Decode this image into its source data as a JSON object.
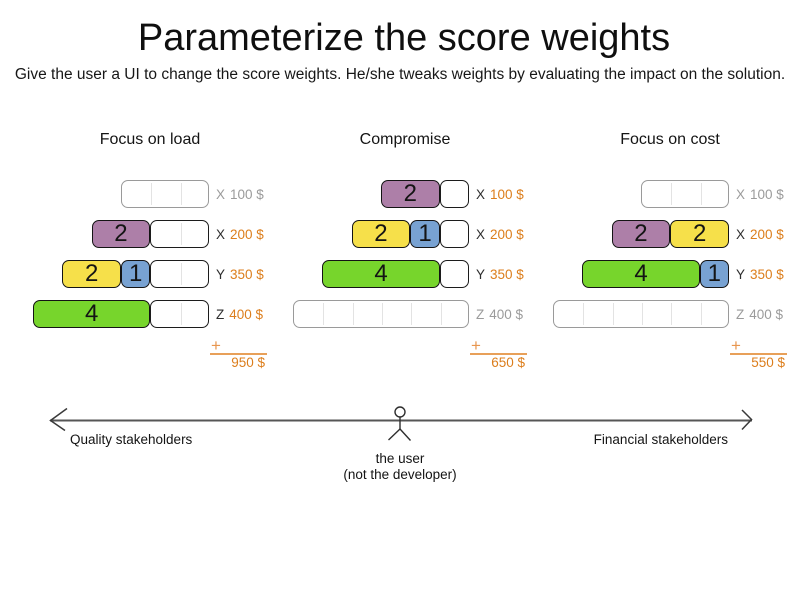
{
  "title": "Parameterize the score weights",
  "subtitle": "Give the user a UI to change the score weights. He/she tweaks weights by evaluating the impact on the solution.",
  "colors": {
    "purple": "#ad7fa8",
    "yellow": "#f6e04a",
    "blue": "#78a2d2",
    "green": "#77d52c",
    "price_orange": "#dc7e1c",
    "sum_accent": "#e8a059",
    "inactive_gray": "#9b9b9b"
  },
  "sum_plus": "+",
  "scenarios": [
    {
      "title": "Focus on load",
      "sum": "950 $",
      "rows": [
        {
          "computer": "X",
          "price": "100 $",
          "capacity": 3,
          "active": false,
          "blocks": []
        },
        {
          "computer": "X",
          "price": "200 $",
          "capacity": 4,
          "active": true,
          "blocks": [
            {
              "color": "purple",
              "value": 2
            }
          ]
        },
        {
          "computer": "Y",
          "price": "350 $",
          "capacity": 5,
          "active": true,
          "blocks": [
            {
              "color": "yellow",
              "value": 2
            },
            {
              "color": "blue",
              "value": 1
            }
          ]
        },
        {
          "computer": "Z",
          "price": "400 $",
          "capacity": 6,
          "active": true,
          "blocks": [
            {
              "color": "green",
              "value": 4
            }
          ]
        }
      ]
    },
    {
      "title": "Compromise",
      "sum": "650 $",
      "rows": [
        {
          "computer": "X",
          "price": "100 $",
          "capacity": 3,
          "active": true,
          "blocks": [
            {
              "color": "purple",
              "value": 2
            }
          ]
        },
        {
          "computer": "X",
          "price": "200 $",
          "capacity": 4,
          "active": true,
          "blocks": [
            {
              "color": "yellow",
              "value": 2
            },
            {
              "color": "blue",
              "value": 1
            }
          ]
        },
        {
          "computer": "Y",
          "price": "350 $",
          "capacity": 5,
          "active": true,
          "blocks": [
            {
              "color": "green",
              "value": 4
            }
          ]
        },
        {
          "computer": "Z",
          "price": "400 $",
          "capacity": 6,
          "active": false,
          "blocks": []
        }
      ]
    },
    {
      "title": "Focus on cost",
      "sum": "550 $",
      "rows": [
        {
          "computer": "X",
          "price": "100 $",
          "capacity": 3,
          "active": false,
          "blocks": []
        },
        {
          "computer": "X",
          "price": "200 $",
          "capacity": 4,
          "active": true,
          "blocks": [
            {
              "color": "purple",
              "value": 2
            },
            {
              "color": "yellow",
              "value": 2
            }
          ]
        },
        {
          "computer": "Y",
          "price": "350 $",
          "capacity": 5,
          "active": true,
          "blocks": [
            {
              "color": "green",
              "value": 4
            },
            {
              "color": "blue",
              "value": 1
            }
          ]
        },
        {
          "computer": "Z",
          "price": "400 $",
          "capacity": 6,
          "active": false,
          "blocks": []
        }
      ]
    }
  ],
  "axis": {
    "left_label": "Quality stakeholders",
    "right_label": "Financial stakeholders",
    "caption_line1": "the user",
    "caption_line2": "(not the developer)"
  }
}
